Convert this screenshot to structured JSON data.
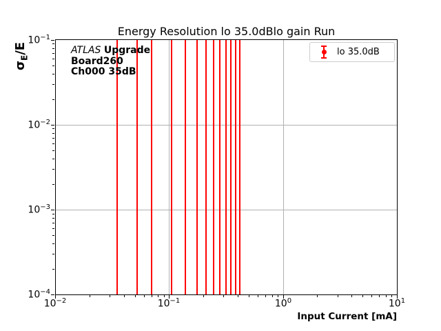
{
  "figure": {
    "background": "#ffffff",
    "text_color": "#000000"
  },
  "chart_data": {
    "type": "scatter",
    "subtype": "errorbar",
    "title": "Energy Resolution lo 35.0dBlo gain Run",
    "xlabel": "Input Current [mA]",
    "ylabel_parts": {
      "sigma": "σ",
      "sub": "E",
      "rest": "/E"
    },
    "xscale": "log",
    "yscale": "log",
    "xlim": [
      0.01,
      10
    ],
    "ylim": [
      0.0001,
      0.1
    ],
    "x_tick_exponents": [
      -2,
      -1,
      0,
      1
    ],
    "y_tick_exponents": [
      -1,
      -2,
      -3,
      -4
    ],
    "minor_ticks": "log decades 2-9",
    "grid": "major only",
    "grid_x_values": [
      0.1,
      1
    ],
    "grid_y_values": [
      0.01,
      0.001
    ],
    "grid_color": "#b0b0b0",
    "legend_position": "upper right",
    "series": [
      {
        "name": "lo 35.0dB",
        "color": "#ff0000",
        "marker": "filled circle with vertical error bar",
        "x_mA": [
          0.035,
          0.0525,
          0.07,
          0.105,
          0.14,
          0.175,
          0.21,
          0.245,
          0.28,
          0.315,
          0.35,
          0.385,
          0.42
        ],
        "error_bars": "vertical error bars span entire visible y-range 1e-4 to 1e-1 (clipped); no markers visible inside axes"
      }
    ]
  },
  "annotation": {
    "experiment": "ATLAS",
    "line1_bold": "Upgrade",
    "line2": "Board260",
    "line3": "Ch000 35dB"
  },
  "legend": {
    "label": "lo 35.0dB",
    "marker_color": "#ff0000"
  }
}
